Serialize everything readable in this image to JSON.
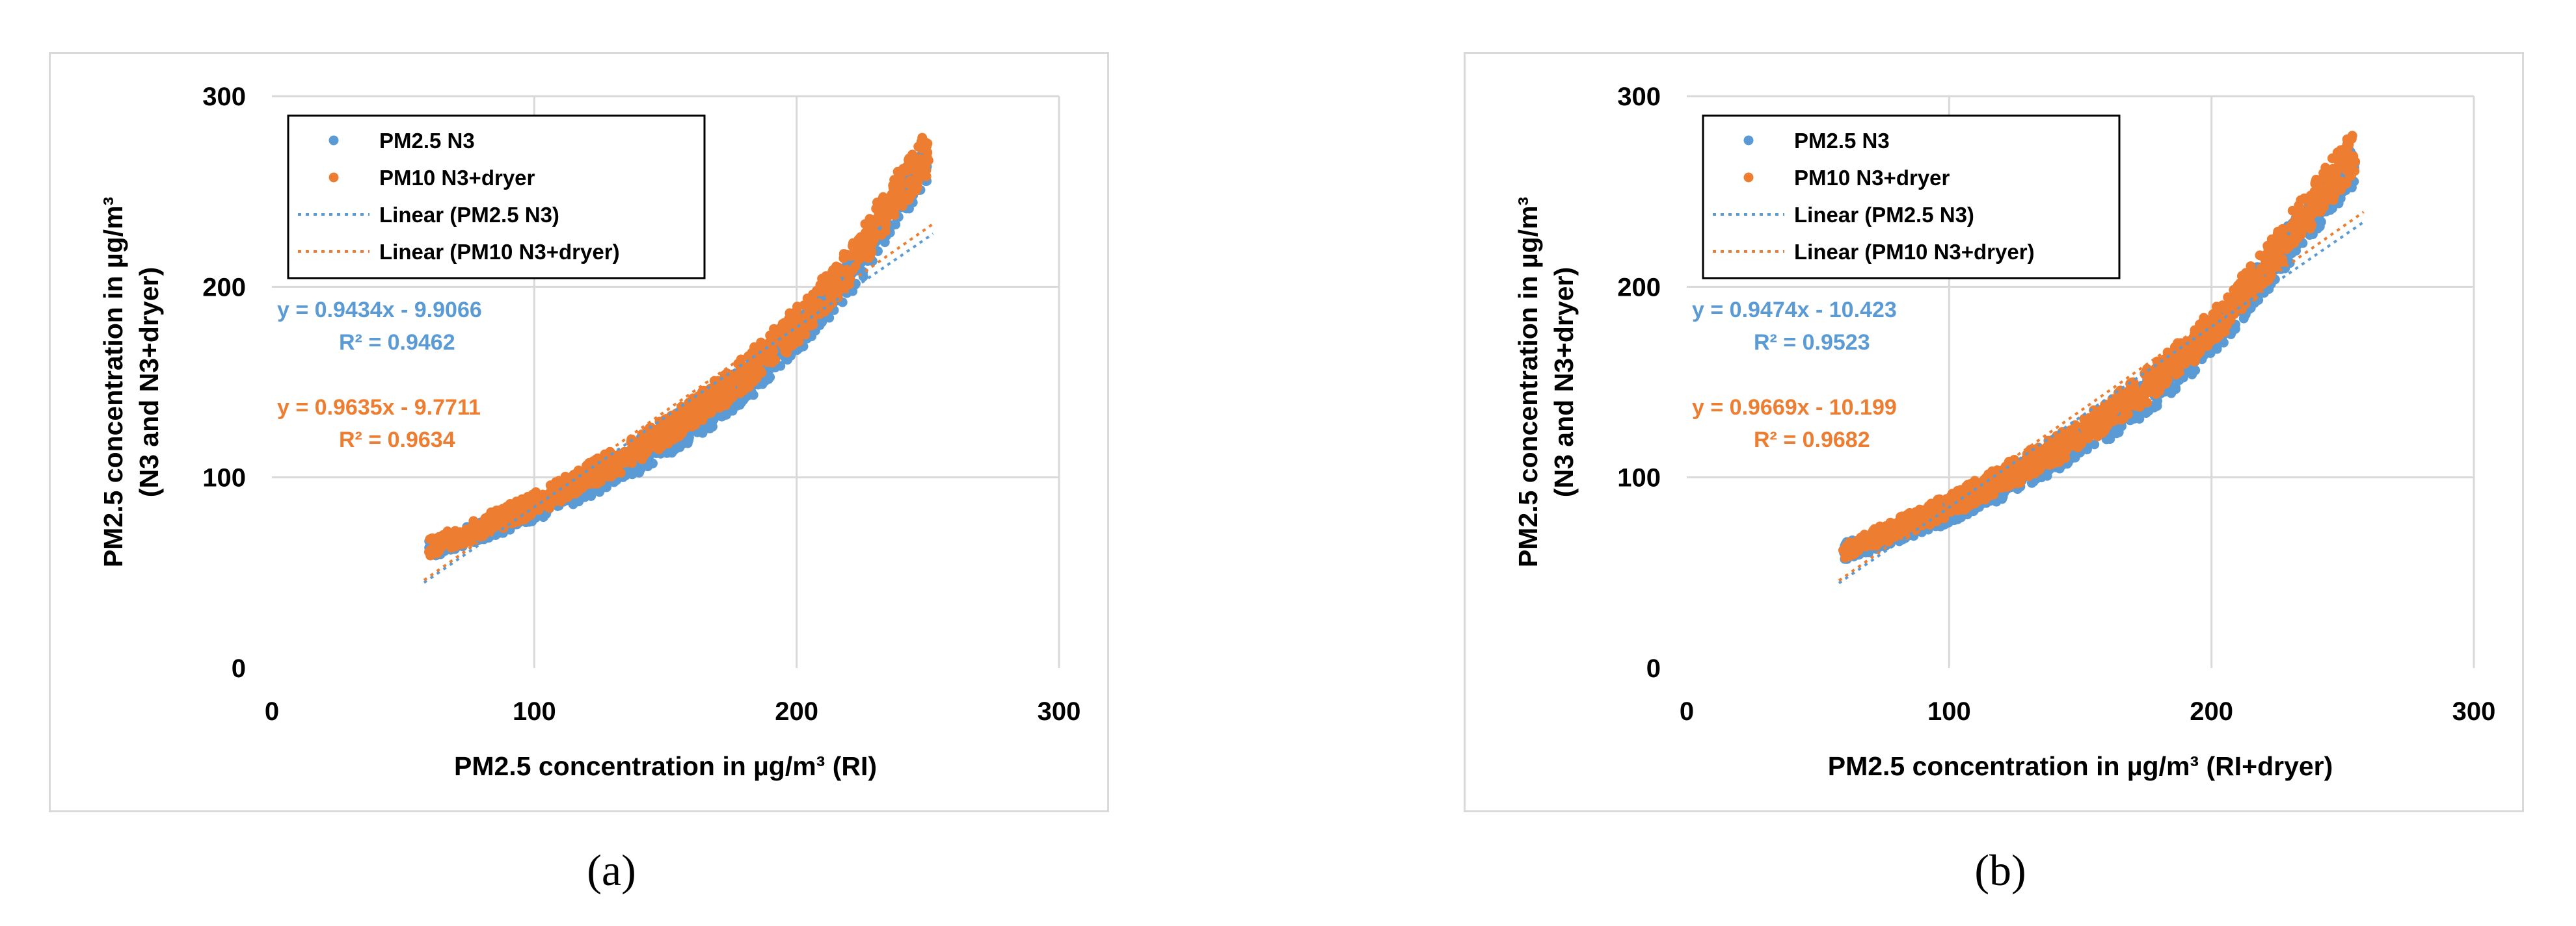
{
  "colors": {
    "series1": "#5b9bd5",
    "series2": "#ed7d31",
    "grid": "#d9d9d9"
  },
  "captions": {
    "a": "(a)",
    "b": "(b)"
  },
  "chart_data": [
    {
      "type": "scatter",
      "xlabel": "PM2.5 concentration in µg/m³ (RI)",
      "ylabel": "PM2.5 concentration in µg/m³",
      "ylabel2": "(N3 and N3+dryer)",
      "xlim": [
        0,
        300
      ],
      "ylim": [
        0,
        300
      ],
      "xticks": [
        "0",
        "100",
        "200",
        "300"
      ],
      "yticks": [
        "0",
        "100",
        "200",
        "300"
      ],
      "grid": true,
      "legend_position": "top-left",
      "legend": [
        "PM2.5 N3",
        "PM10 N3+dryer",
        "Linear (PM2.5 N3)",
        "Linear (PM10 N3+dryer)"
      ],
      "series": [
        {
          "name": "PM2.5 N3",
          "x": [
            60,
            80,
            100,
            120,
            140,
            160,
            180,
            200,
            220,
            235,
            250
          ],
          "y": [
            62,
            72,
            83,
            96,
            110,
            127,
            148,
            175,
            205,
            237,
            266
          ]
        },
        {
          "name": "PM10 N3+dryer",
          "x": [
            60,
            80,
            100,
            120,
            140,
            160,
            180,
            200,
            220,
            235,
            250
          ],
          "y": [
            63,
            74,
            86,
            100,
            115,
            133,
            154,
            180,
            210,
            242,
            270
          ]
        }
      ],
      "trendlines": [
        {
          "name": "Linear (PM2.5 N3)",
          "slope": 0.9434,
          "intercept": -9.9066,
          "x_range": [
            58,
            252
          ]
        },
        {
          "name": "Linear (PM10 N3+dryer)",
          "slope": 0.9635,
          "intercept": -9.7711,
          "x_range": [
            58,
            252
          ]
        }
      ],
      "annotations": [
        {
          "equation": "y = 0.9434x - 9.9066",
          "r2": "R² = 0.9462"
        },
        {
          "equation": "y = 0.9635x - 9.7711",
          "r2": "R² = 0.9634"
        }
      ]
    },
    {
      "type": "scatter",
      "xlabel": "PM2.5 concentration in µg/m³ (RI+dryer)",
      "ylabel": "PM2.5 concentration in µg/m³",
      "ylabel2": "(N3 and N3+dryer)",
      "xlim": [
        0,
        300
      ],
      "ylim": [
        0,
        300
      ],
      "xticks": [
        "0",
        "100",
        "200",
        "300"
      ],
      "yticks": [
        "0",
        "100",
        "200",
        "300"
      ],
      "grid": true,
      "legend_position": "top-left",
      "legend": [
        "PM2.5 N3",
        "PM10 N3+dryer",
        "Linear (PM2.5 N3)",
        "Linear (PM10 N3+dryer)"
      ],
      "series": [
        {
          "name": "PM2.5 N3",
          "x": [
            60,
            80,
            100,
            120,
            140,
            160,
            180,
            200,
            220,
            240,
            255
          ],
          "y": [
            61,
            71,
            82,
            95,
            110,
            127,
            147,
            173,
            205,
            240,
            266
          ]
        },
        {
          "name": "PM10 N3+dryer",
          "x": [
            60,
            80,
            100,
            120,
            140,
            160,
            180,
            200,
            220,
            240,
            255
          ],
          "y": [
            62,
            73,
            85,
            99,
            114,
            132,
            153,
            178,
            210,
            245,
            272
          ]
        }
      ],
      "trendlines": [
        {
          "name": "Linear (PM2.5 N3)",
          "slope": 0.9474,
          "intercept": -10.423,
          "x_range": [
            58,
            258
          ]
        },
        {
          "name": "Linear (PM10 N3+dryer)",
          "slope": 0.9669,
          "intercept": -10.199,
          "x_range": [
            58,
            258
          ]
        }
      ],
      "annotations": [
        {
          "equation": "y = 0.9474x - 10.423",
          "r2": "R² = 0.9523"
        },
        {
          "equation": "y = 0.9669x - 10.199",
          "r2": "R² = 0.9682"
        }
      ]
    }
  ]
}
